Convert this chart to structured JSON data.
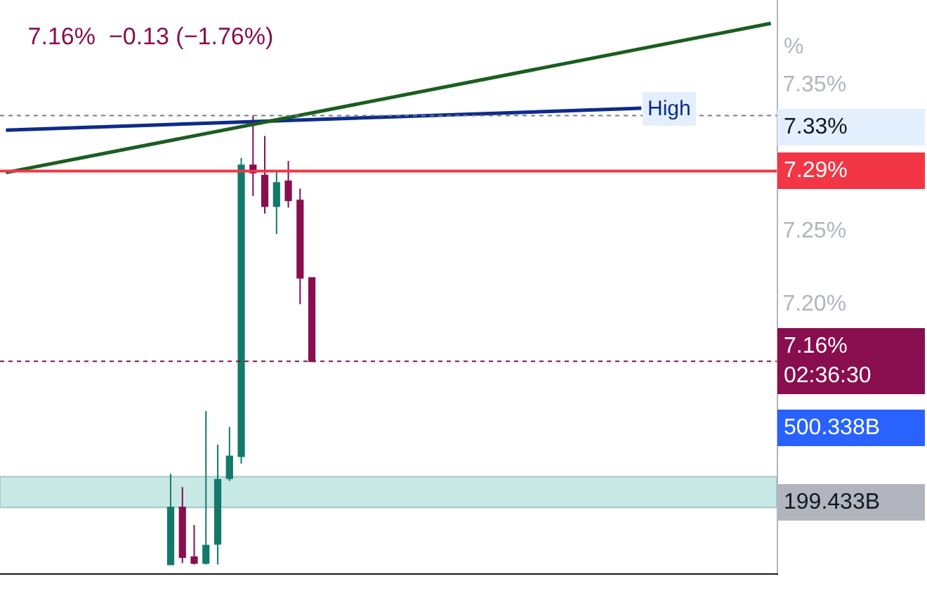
{
  "chart_data": {
    "type": "candlestick",
    "title": "7.16%  −0.13 (−1.76%)",
    "categories": [
      null,
      null,
      null,
      null,
      null,
      null,
      null,
      null,
      null,
      null,
      null,
      null,
      null,
      null,
      null,
      null,
      null,
      null,
      null,
      null,
      null,
      null,
      null,
      null,
      null,
      null,
      null,
      null,
      null,
      null,
      null,
      null,
      null,
      null,
      null,
      null,
      null,
      null,
      null,
      null,
      null,
      null,
      null,
      null,
      null,
      null,
      null,
      null,
      null,
      null,
      null,
      null,
      null,
      null,
      null,
      null,
      null,
      null,
      null,
      null,
      null,
      null,
      null,
      null,
      null,
      null
    ],
    "ohlc": [
      null,
      null,
      null,
      null,
      null,
      null,
      null,
      null,
      null,
      null,
      null,
      null,
      null,
      null,
      [
        7.021,
        7.083,
        7.021,
        7.06
      ],
      [
        7.06,
        7.074,
        7.022,
        7.026
      ],
      [
        7.026,
        7.048,
        7.021,
        7.022
      ],
      [
        7.022,
        7.126,
        7.021,
        7.034
      ],
      [
        7.035,
        7.103,
        7.021,
        7.079
      ],
      [
        7.08,
        7.115,
        7.078,
        7.095
      ],
      [
        7.095,
        7.299,
        7.09,
        7.294
      ],
      [
        7.294,
        7.328,
        7.273,
        7.289
      ],
      [
        7.287,
        7.314,
        7.261,
        7.266
      ],
      [
        7.266,
        7.29,
        7.247,
        7.282
      ],
      [
        7.283,
        7.297,
        7.265,
        7.27
      ],
      [
        7.27,
        7.278,
        7.199,
        7.217
      ],
      [
        7.217,
        7.217,
        7.16,
        7.16
      ],
      null,
      null,
      null,
      null,
      null,
      null,
      null,
      null,
      null,
      null,
      null,
      null,
      null,
      null,
      null,
      null,
      null,
      null,
      null,
      null,
      null,
      null,
      null,
      null,
      null,
      null,
      null,
      null,
      null,
      null,
      null,
      null,
      null,
      null,
      null,
      null,
      null,
      null,
      null
    ],
    "colors": [
      null,
      null,
      null,
      null,
      null,
      null,
      null,
      null,
      null,
      null,
      null,
      null,
      null,
      null,
      "#137a6b",
      "#880e4f",
      "#880e4f",
      "#137a6b",
      "#137a6b",
      "#137a6b",
      "#137a6b",
      "#880e4f",
      "#880e4f",
      "#137a6b",
      "#880e4f",
      "#880e4f",
      "#880e4f",
      null,
      null,
      null,
      null,
      null,
      null,
      null,
      null,
      null,
      null,
      null,
      null,
      null,
      null,
      null,
      null,
      null,
      null,
      null,
      null,
      null,
      null,
      null,
      null,
      null,
      null,
      null,
      null,
      null,
      null,
      null,
      null,
      null,
      null,
      null,
      null,
      null,
      null,
      null
    ],
    "series": [
      {
        "type": "line",
        "name": "High",
        "color": "#0d2b8a",
        "values": [
          7.318,
          null,
          null,
          null,
          null,
          null,
          null,
          null,
          null,
          null,
          null,
          null,
          null,
          null,
          null,
          null,
          null,
          null,
          null,
          null,
          null,
          null,
          null,
          null,
          null,
          null,
          null,
          null,
          null,
          null,
          null,
          null,
          null,
          null,
          null,
          null,
          null,
          null,
          null,
          null,
          null,
          null,
          null,
          null,
          null,
          null,
          null,
          null,
          null,
          null,
          null,
          null,
          null,
          null,
          7.333,
          null,
          null,
          null,
          null,
          null,
          null,
          null,
          null,
          null,
          null,
          null
        ]
      },
      {
        "type": "line",
        "color": "#1b5e20",
        "values": [
          7.289,
          null,
          null,
          null,
          null,
          null,
          null,
          null,
          null,
          null,
          null,
          null,
          null,
          null,
          null,
          null,
          null,
          null,
          null,
          null,
          null,
          null,
          null,
          null,
          null,
          null,
          null,
          null,
          null,
          null,
          null,
          null,
          null,
          null,
          null,
          null,
          null,
          null,
          null,
          null,
          null,
          null,
          null,
          null,
          null,
          null,
          null,
          null,
          null,
          null,
          null,
          null,
          null,
          null,
          null,
          null,
          null,
          null,
          null,
          null,
          null,
          null,
          null,
          null,
          null,
          7.391
        ]
      }
    ],
    "ylim": [
      7.015,
      7.407
    ],
    "yticks": [
      {
        "value": 7.2,
        "label": "7.20%"
      },
      {
        "value": 7.25,
        "label": "7.25%"
      },
      {
        "value": 7.35,
        "label": "7.35%"
      }
    ],
    "tick_labels": "y",
    "ref_lines": [
      {
        "axis": "y",
        "value": 7.29,
        "label": "7.29%",
        "color": "#f23645",
        "line_style": "solid"
      },
      {
        "axis": "y",
        "value": 7.16,
        "label": "7.16%\n02:36:30",
        "color": "#880e4f",
        "line_style": "dotted"
      },
      {
        "axis": "y",
        "value": 7.328,
        "color": "#787b86",
        "line_style": "dotted"
      }
    ],
    "bands": [
      {
        "axis": "y",
        "from": 7.06,
        "to": 7.081,
        "color": "#b2dfdb"
      }
    ],
    "annotations": [
      "%",
      "7.33%",
      "500.338B",
      "199.433B"
    ]
  }
}
